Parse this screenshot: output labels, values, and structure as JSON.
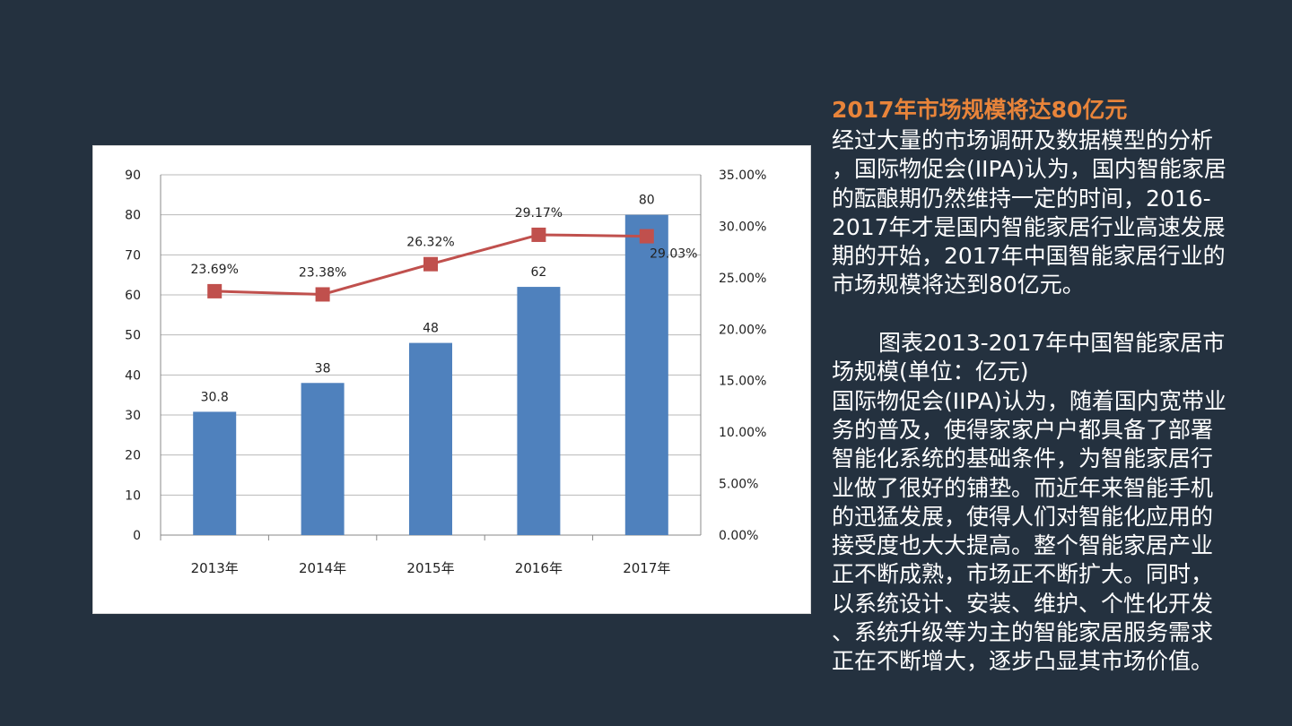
{
  "text_panel": {
    "heading": "2017年市场规模将达80亿元",
    "paragraph1_lines": [
      "经过大量的市场调研及数据模型的分析",
      "，国际物促会(IIPA)认为，国内智能家居",
      "的酝酿期仍然维持一定的时间，2016-",
      "2017年才是国内智能家居行业高速发展",
      "期的开始，2017年中国智能家居行业的",
      "市场规模将达到80亿元。"
    ],
    "paragraph2_lines": [
      "图表2013-2017年中国智能家居市",
      "场规模(单位：亿元)",
      "国际物促会(IIPA)认为，随着国内宽带业",
      "务的普及，使得家家户户都具备了部署",
      "智能化系统的基础条件，为智能家居行",
      "业做了很好的铺垫。而近年来智能手机",
      "的迅猛发展，使得人们对智能化应用的",
      "接受度也大大提高。整个智能家居产业",
      "正不断成熟，市场正不断扩大。同时，",
      "以系统设计、安装、维护、个性化开发",
      "、系统升级等为主的智能家居服务需求",
      "正在不断增大，逐步凸显其市场价值。"
    ]
  },
  "colors": {
    "background": "#24313f",
    "heading": "#e8843a",
    "bar": "#4f81bd",
    "line": "#c0504d"
  },
  "chart_data": {
    "type": "bar+line",
    "categories": [
      "2013年",
      "2014年",
      "2015年",
      "2016年",
      "2017年"
    ],
    "series": [
      {
        "type": "bar",
        "axis": "left",
        "values": [
          30.8,
          38,
          48,
          62,
          80
        ],
        "labels": [
          "30.8",
          "38",
          "48",
          "62",
          "80"
        ]
      },
      {
        "type": "line",
        "axis": "right",
        "values": [
          23.69,
          23.38,
          26.32,
          29.17,
          29.03
        ],
        "labels": [
          "23.69%",
          "23.38%",
          "26.32%",
          "29.17%",
          "29.03%"
        ]
      }
    ],
    "left_axis": {
      "range": [
        0,
        90
      ],
      "ticks": [
        "0",
        "10",
        "20",
        "30",
        "40",
        "50",
        "60",
        "70",
        "80",
        "90"
      ]
    },
    "right_axis": {
      "range": [
        0,
        35
      ],
      "ticks": [
        "0.00%",
        "5.00%",
        "10.00%",
        "15.00%",
        "20.00%",
        "25.00%",
        "30.00%",
        "35.00%"
      ]
    },
    "grid": true,
    "legend": "none"
  }
}
